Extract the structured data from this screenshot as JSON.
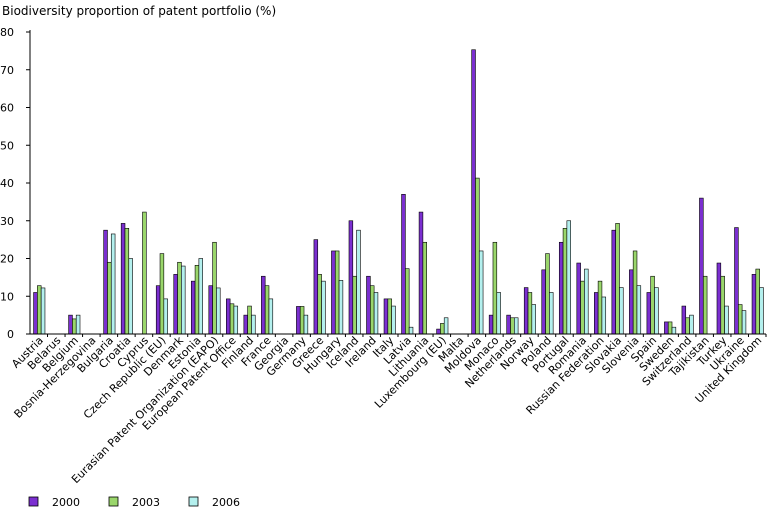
{
  "chart_data": {
    "type": "bar",
    "title": "Biodiversity proportion of patent portfolio (%)",
    "xlabel": "",
    "ylabel": "",
    "ylim": [
      0,
      80
    ],
    "yticks": [
      0,
      10,
      20,
      30,
      40,
      50,
      60,
      70,
      80
    ],
    "grid": false,
    "legend_position": "bottom-left",
    "categories": [
      "Austria",
      "Belarus",
      "Belgium",
      "Bosnia-Herzegovina",
      "Bulgaria",
      "Croatia",
      "Cyprus",
      "Czech Republic (EU)",
      "Denmark",
      "Estonia",
      "Eurasian Patent Organization (EAPO)",
      "European Patent Office",
      "Finland",
      "France",
      "Georgia",
      "Germany",
      "Greece",
      "Hungary",
      "Iceland",
      "Ireland",
      "Italy",
      "Latvia",
      "Lithuania",
      "Luxembourg (EU)",
      "Malta",
      "Moldova",
      "Monaco",
      "Netherlands",
      "Norway",
      "Poland",
      "Portugal",
      "Romania",
      "Russian Federation",
      "Slovakia",
      "Slovenia",
      "Spain",
      "Sweden",
      "Switzerland",
      "Tajikistan",
      "Turkey",
      "Ukraine",
      "United Kingdom"
    ],
    "series": [
      {
        "name": "2000",
        "color": "#7b2fd0",
        "values": [
          11,
          null,
          5,
          null,
          27.5,
          29.3,
          null,
          12.8,
          15.8,
          14,
          12.8,
          9.3,
          5,
          15.3,
          null,
          7.3,
          25,
          22,
          30,
          15.3,
          9.3,
          37,
          32.3,
          1.3,
          null,
          75.3,
          5,
          5,
          12.3,
          17,
          24.3,
          18.8,
          11,
          27.5,
          17,
          11,
          3.2,
          7.4,
          36,
          18.8,
          28.2,
          15.8
        ]
      },
      {
        "name": "2003",
        "color": "#9ad66b",
        "values": [
          12.8,
          null,
          4,
          null,
          19,
          28,
          32.3,
          21.3,
          19,
          18.2,
          24.3,
          8,
          7.4,
          12.8,
          null,
          7.3,
          15.8,
          22,
          15.3,
          12.8,
          9.3,
          17.3,
          24.3,
          2.8,
          null,
          41.3,
          24.3,
          4.3,
          11,
          21.3,
          28,
          14,
          14,
          29.3,
          22,
          15.3,
          3.2,
          4.3,
          15.3,
          15.3,
          7.8,
          17.2
        ]
      },
      {
        "name": "2006",
        "color": "#b4f0ee",
        "values": [
          12.2,
          null,
          5,
          null,
          26.5,
          20,
          null,
          9.3,
          18,
          20,
          12.2,
          7.4,
          5,
          9.3,
          null,
          5,
          14,
          14.2,
          27.5,
          11,
          7.4,
          1.8,
          null,
          4.3,
          null,
          22,
          11,
          4.3,
          7.8,
          11,
          30,
          17.2,
          9.8,
          12.3,
          12.8,
          12.3,
          1.8,
          5,
          null,
          7.4,
          6.2,
          12.3
        ]
      }
    ]
  }
}
